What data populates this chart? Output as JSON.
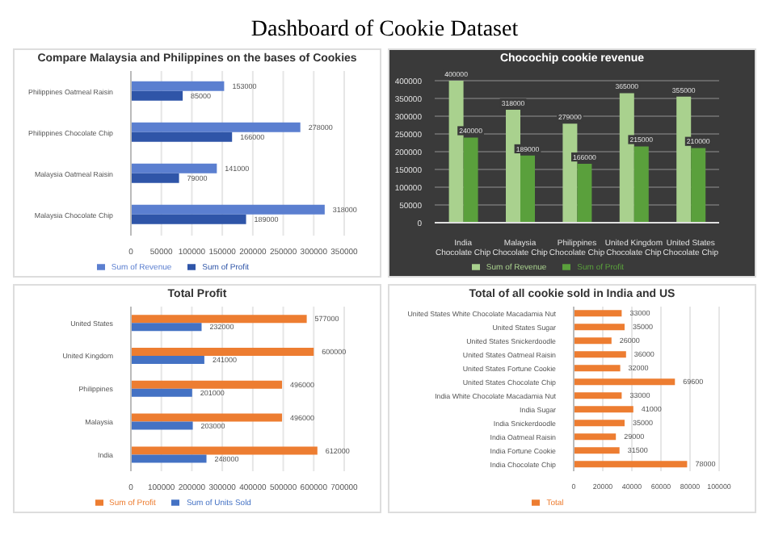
{
  "chart_data": [
    {
      "type": "other",
      "title": "Dashboard of Cookie Dataset"
    },
    {
      "type": "bar",
      "orientation": "horizontal",
      "title": "Compare Malaysia and Philippines on the bases of Cookies",
      "categories": [
        "Philippines Oatmeal Raisin",
        "Philippines Chocolate Chip",
        "Malaysia Oatmeal Raisin",
        "Malaysia Chocolate Chip"
      ],
      "series": [
        {
          "name": "Sum of Revenue",
          "color": "#5b7fd0",
          "values": [
            153000,
            278000,
            141000,
            318000
          ]
        },
        {
          "name": "Sum of Profit",
          "color": "#2f55a8",
          "values": [
            85000,
            166000,
            79000,
            189000
          ]
        }
      ],
      "xlim": [
        0,
        350000
      ],
      "xticks": [
        0,
        50000,
        100000,
        150000,
        200000,
        250000,
        300000,
        350000
      ],
      "grid": "x",
      "legend": "bottom",
      "data_labels": true
    },
    {
      "type": "bar",
      "title": "Chocochip cookie revenue",
      "categories": [
        "India Chocolate Chip",
        "Malaysia Chocolate Chip",
        "Philippines Chocolate Chip",
        "United Kingdom Chocolate Chip",
        "United States Chocolate Chip"
      ],
      "series": [
        {
          "name": "Sum of Revenue",
          "color": "#a9d18e",
          "values": [
            400000,
            318000,
            279000,
            365000,
            355000
          ]
        },
        {
          "name": "Sum of Profit",
          "color": "#5aa03c",
          "values": [
            240000,
            189000,
            166000,
            215000,
            210000
          ]
        }
      ],
      "ylim": [
        0,
        400000
      ],
      "yticks": [
        0,
        50000,
        100000,
        150000,
        200000,
        250000,
        300000,
        350000,
        400000
      ],
      "grid": "y",
      "legend": "bottom",
      "data_labels": true
    },
    {
      "type": "bar",
      "orientation": "horizontal",
      "title": "Total Profit",
      "categories": [
        "United States",
        "United Kingdom",
        "Philippines",
        "Malaysia",
        "India"
      ],
      "series": [
        {
          "name": "Sum of Profit",
          "color": "#ed7d31",
          "values": [
            577000,
            600000,
            496000,
            496000,
            612000
          ]
        },
        {
          "name": "Sum of Units Sold",
          "color": "#4472c4",
          "values": [
            232000,
            241000,
            201000,
            203000,
            248000
          ]
        }
      ],
      "xlim": [
        0,
        700000
      ],
      "xticks": [
        0,
        100000,
        200000,
        300000,
        400000,
        500000,
        600000,
        700000
      ],
      "grid": "x",
      "legend": "bottom",
      "data_labels": true
    },
    {
      "type": "bar",
      "orientation": "horizontal",
      "title": "Total of all cookie sold in India and US",
      "categories": [
        "United States White Chocolate Macadamia Nut",
        "United States Sugar",
        "United States Snickerdoodle",
        "United States Oatmeal Raisin",
        "United States Fortune Cookie",
        "United States Chocolate Chip",
        "India White Chocolate Macadamia Nut",
        "India Sugar",
        "India Snickerdoodle",
        "India Oatmeal Raisin",
        "India Fortune Cookie",
        "India Chocolate Chip"
      ],
      "series": [
        {
          "name": "Total",
          "color": "#ed7d31",
          "values": [
            33000,
            35000,
            26000,
            36000,
            32000,
            69600,
            33000,
            41000,
            35000,
            29000,
            31500,
            78000
          ]
        }
      ],
      "xlim": [
        0,
        100000
      ],
      "xticks": [
        0,
        20000,
        40000,
        60000,
        80000,
        100000
      ],
      "grid": "x",
      "legend": "bottom",
      "data_labels": true
    }
  ]
}
